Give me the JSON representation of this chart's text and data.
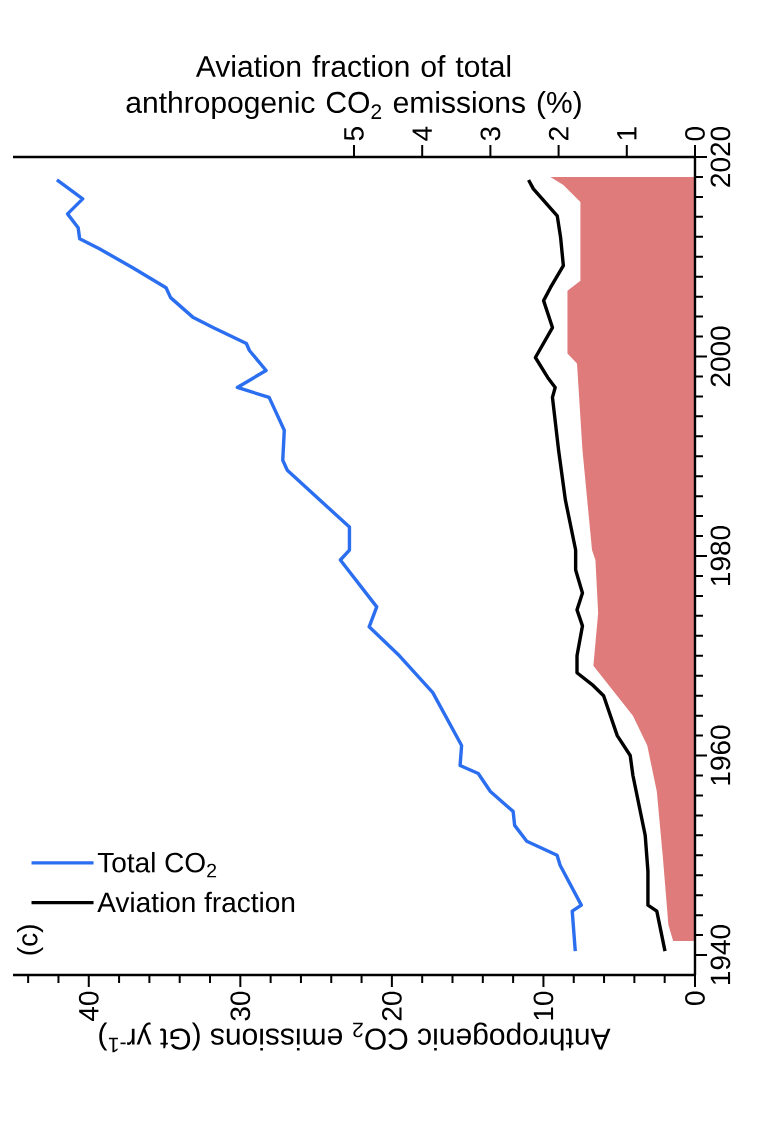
{
  "chart_data": {
    "type": "line",
    "xlabel": "Anthropogenic CO$_{2}$ emissions (Gt yr$^{-1}$)",
    "x2label": "Aviation fraction of total anthropogenic CO$_{2}$ emissions (%)",
    "annotations": [
      "(c)"
    ],
    "ylim": [
      1938,
      2020
    ],
    "yticks": [
      1940,
      {
        "value": 1942,
        "label": null
      },
      {
        "value": 1944,
        "label": null
      },
      {
        "value": 1946,
        "label": null
      },
      {
        "value": 1948,
        "label": null
      },
      {
        "value": 1950,
        "label": null
      },
      {
        "value": 1952,
        "label": null
      },
      {
        "value": 1954,
        "label": null
      },
      {
        "value": 1956,
        "label": null
      },
      {
        "value": 1958,
        "label": null
      },
      1960,
      {
        "value": 1962,
        "label": null
      },
      {
        "value": 1964,
        "label": null
      },
      {
        "value": 1966,
        "label": null
      },
      {
        "value": 1968,
        "label": null
      },
      {
        "value": 1970,
        "label": null
      },
      {
        "value": 1972,
        "label": null
      },
      {
        "value": 1974,
        "label": null
      },
      {
        "value": 1976,
        "label": null
      },
      {
        "value": 1978,
        "label": null
      },
      1980,
      {
        "value": 1982,
        "label": null
      },
      {
        "value": 1984,
        "label": null
      },
      {
        "value": 1986,
        "label": null
      },
      {
        "value": 1988,
        "label": null
      },
      {
        "value": 1990,
        "label": null
      },
      {
        "value": 1992,
        "label": null
      },
      {
        "value": 1994,
        "label": null
      },
      {
        "value": 1996,
        "label": null
      },
      {
        "value": 1998,
        "label": null
      },
      2000,
      {
        "value": 2002,
        "label": null
      },
      {
        "value": 2004,
        "label": null
      },
      {
        "value": 2006,
        "label": null
      },
      {
        "value": 2008,
        "label": null
      },
      {
        "value": 2010,
        "label": null
      },
      {
        "value": 2012,
        "label": null
      },
      {
        "value": 2014,
        "label": null
      },
      {
        "value": 2016,
        "label": null
      },
      {
        "value": 2018,
        "label": null
      },
      2020
    ],
    "xlim": [
      45,
      0
    ],
    "xticks": [
      0,
      {
        "value": 2,
        "label": null
      },
      {
        "value": 4,
        "label": null
      },
      {
        "value": 6,
        "label": null
      },
      {
        "value": 8,
        "label": null
      },
      10,
      {
        "value": 12,
        "label": null
      },
      {
        "value": 14,
        "label": null
      },
      {
        "value": 16,
        "label": null
      },
      {
        "value": 18,
        "label": null
      },
      20,
      {
        "value": 22,
        "label": null
      },
      {
        "value": 24,
        "label": null
      },
      {
        "value": 26,
        "label": null
      },
      {
        "value": 28,
        "label": null
      },
      30,
      {
        "value": 32,
        "label": null
      },
      {
        "value": 34,
        "label": null
      },
      {
        "value": 36,
        "label": null
      },
      {
        "value": 38,
        "label": null
      },
      40,
      {
        "value": 42,
        "label": null
      },
      {
        "value": 44,
        "label": null
      }
    ],
    "x2lim": [
      10,
      0
    ],
    "x2ticks": [
      0,
      1,
      2,
      3,
      4,
      5
    ],
    "legend": "bottom left",
    "series": [
      {
        "name": "Total CO$_{2}$",
        "color": "#2b6ff0",
        "values": [
          1940.4,
          1944.4,
          1945,
          1949,
          1950,
          1951.4,
          1953,
          1954.4,
          1956.4,
          1958.2,
          1959,
          1961,
          1966.3,
          1970,
          1972.9,
          1974.9,
          1979.6,
          1980.6,
          1982.9,
          1988.6,
          1989.6,
          1992.6,
          1995.9,
          1996.9,
          1998.6,
          2000.6,
          2001.3,
          2002.9,
          2003.9,
          2005.9,
          2006.9,
          2008.9,
          2010.8,
          2011.8,
          2012.9,
          2014.3,
          2015.8,
          2017.7
        ],
        "x": [
          7.9,
          8.1,
          7.5,
          8.9,
          9.1,
          11.1,
          11.9,
          12.0,
          13.5,
          14.3,
          15.5,
          15.4,
          17.3,
          19.5,
          21.5,
          21.0,
          23.4,
          22.8,
          22.8,
          26.9,
          27.2,
          27.1,
          28.1,
          30.2,
          28.3,
          29.4,
          29.6,
          31.8,
          33.1,
          34.6,
          34.9,
          37.1,
          39.3,
          40.6,
          40.7,
          41.4,
          40.4,
          42.1
        ]
      },
      {
        "name": "Aviation fraction",
        "color": "#000000",
        "axis": "x2",
        "values": [
          1940.4,
          1944.4,
          1945,
          1948.4,
          1952,
          1958,
          1960,
          1962,
          1966,
          1967,
          1968.3,
          1970,
          1973,
          1974.6,
          1976.3,
          1978.6,
          1980.6,
          1985.6,
          1990.6,
          1995.9,
          1996.9,
          1997.9,
          1999.9,
          2002.9,
          2005.6,
          2006.9,
          2009.1,
          2011.9,
          2014.1,
          2016.8,
          2017.7
        ],
        "x": [
          0.44,
          0.56,
          0.69,
          0.69,
          0.73,
          0.91,
          0.95,
          1.14,
          1.34,
          1.49,
          1.73,
          1.73,
          1.65,
          1.73,
          1.65,
          1.75,
          1.75,
          1.9,
          2.0,
          2.09,
          2.05,
          2.16,
          2.34,
          2.09,
          2.22,
          2.12,
          1.93,
          1.97,
          2.02,
          2.37,
          2.44
        ]
      },
      {
        "type": "area",
        "color": "#e07b7b",
        "axis": "x2",
        "values": [
          1941.4,
          1941.4,
          1943,
          1949.7,
          1956.4,
          1961,
          1964,
          1969,
          1974.3,
          1979.6,
          1980.6,
          1990.6,
          1999.3,
          2000.3,
          2006.6,
          2007.6,
          2015.5,
          2017.2,
          2018,
          2018
        ],
        "x": [
          0,
          0.32,
          0.39,
          0.47,
          0.56,
          0.7,
          0.91,
          1.49,
          1.42,
          1.46,
          1.51,
          1.65,
          1.73,
          1.87,
          1.87,
          1.68,
          1.68,
          1.93,
          2.12,
          0
        ]
      }
    ]
  }
}
